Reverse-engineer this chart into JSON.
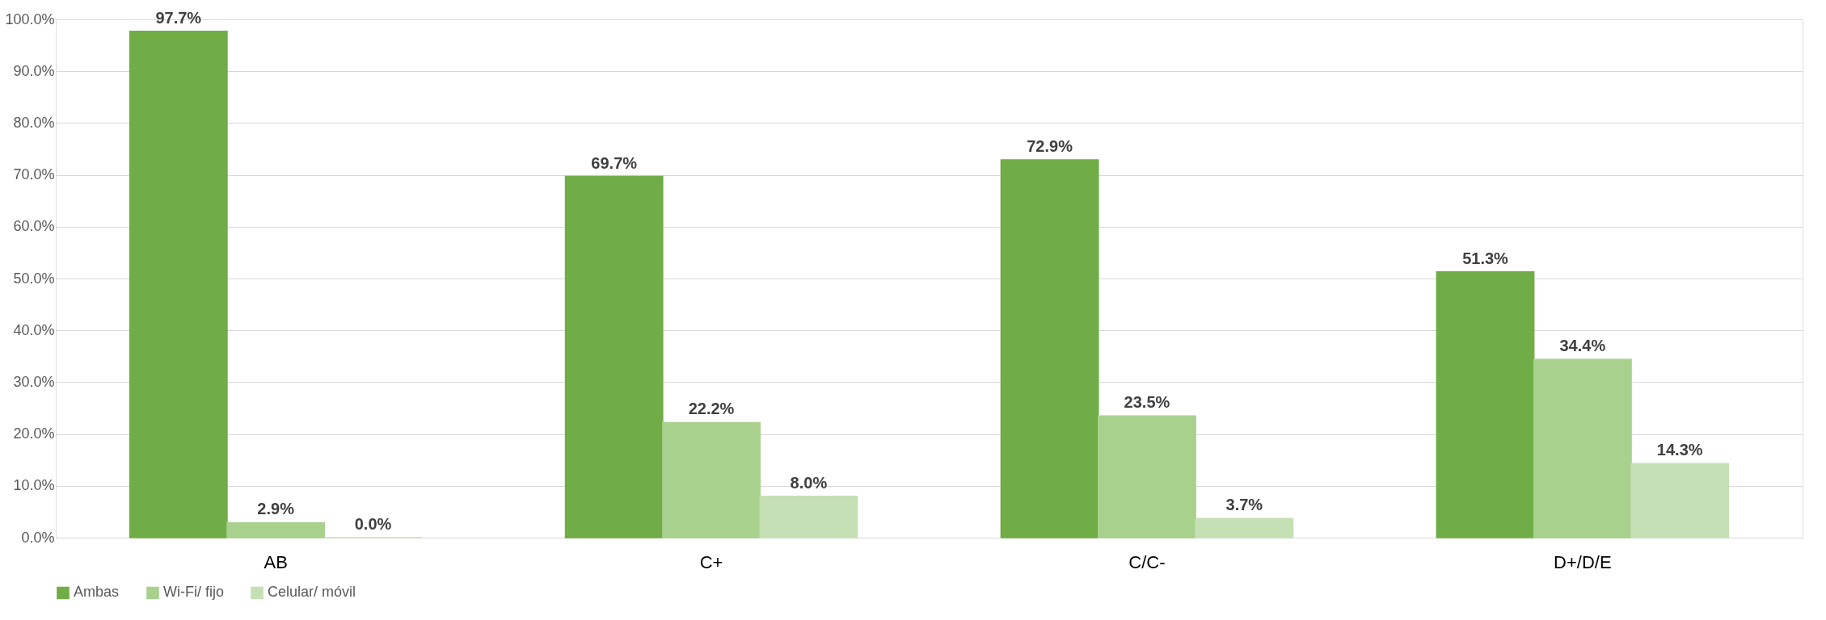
{
  "chart_data": {
    "type": "bar",
    "categories": [
      "AB",
      "C+",
      "C/C-",
      "D+/D/E"
    ],
    "series": [
      {
        "name": "Ambas",
        "color": "#70ad47",
        "values": [
          97.7,
          69.7,
          72.9,
          51.3
        ],
        "value_labels": [
          "97.7%",
          "69.7%",
          "72.9%",
          "51.3%"
        ]
      },
      {
        "name": "Wi-Fi/ fijo",
        "color": "#a9d18e",
        "values": [
          2.9,
          22.2,
          23.5,
          34.4
        ],
        "value_labels": [
          "2.9%",
          "22.2%",
          "23.5%",
          "34.4%"
        ]
      },
      {
        "name": "Celular/ móvil",
        "color": "#c5e0b4",
        "values": [
          0.0,
          8.0,
          3.7,
          14.3
        ],
        "value_labels": [
          "0.0%",
          "8.0%",
          "3.7%",
          "14.3%"
        ]
      }
    ],
    "ylim": [
      0,
      100
    ],
    "yticks": [
      {
        "value": 0,
        "label": "0.0%"
      },
      {
        "value": 10,
        "label": "10.0%"
      },
      {
        "value": 20,
        "label": "20.0%"
      },
      {
        "value": 30,
        "label": "30.0%"
      },
      {
        "value": 40,
        "label": "40.0%"
      },
      {
        "value": 50,
        "label": "50.0%"
      },
      {
        "value": 60,
        "label": "60.0%"
      },
      {
        "value": 70,
        "label": "70.0%"
      },
      {
        "value": 80,
        "label": "80.0%"
      },
      {
        "value": 90,
        "label": "90.0%"
      },
      {
        "value": 100,
        "label": "100.0%"
      }
    ],
    "grid": "y",
    "legend": "bottom"
  }
}
